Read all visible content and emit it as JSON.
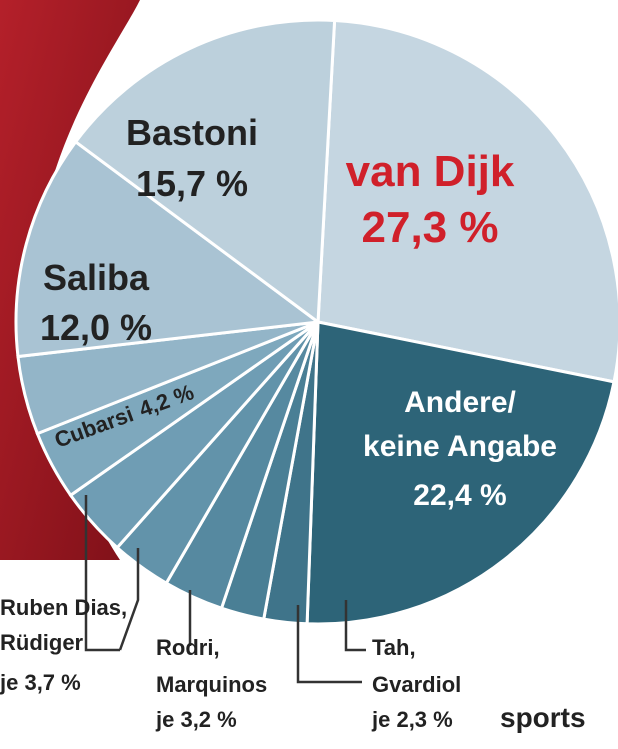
{
  "brand": "sports",
  "chart_data": {
    "type": "pie",
    "title": "",
    "unit": "%",
    "slices": [
      {
        "name": "van Dijk",
        "value": 27.3,
        "label": "27,3 %",
        "color": "#c5d6e1"
      },
      {
        "name": "Andere/ keine Angabe",
        "value": 22.4,
        "label": "22,4 %",
        "color": "#2d6478"
      },
      {
        "name": "Tah",
        "value": 2.3,
        "color": "#3f748a"
      },
      {
        "name": "Gvardiol",
        "value": 2.3,
        "color": "#4a7f95"
      },
      {
        "name": "Rodri",
        "value": 3.2,
        "color": "#5689a0"
      },
      {
        "name": "Marquinos",
        "value": 3.2,
        "color": "#6293aa"
      },
      {
        "name": "Ruben Dias",
        "value": 3.7,
        "color": "#6f9db4"
      },
      {
        "name": "Rüdiger",
        "value": 3.7,
        "color": "#7ea8bd"
      },
      {
        "name": "Cubarsi",
        "value": 4.2,
        "label": "4,2 %",
        "color": "#93b5c8"
      },
      {
        "name": "Saliba",
        "value": 12.0,
        "label": "12,0 %",
        "color": "#a9c3d3"
      },
      {
        "name": "Bastoni",
        "value": 15.7,
        "label": "15,7 %",
        "color": "#bcd0dc"
      }
    ],
    "group_labels": {
      "dias_ruediger": {
        "line1": "Ruben Dias,",
        "line2": "Rüdiger",
        "line3": "je 3,7 %"
      },
      "rodri_marquinos": {
        "line1": "Rodri,",
        "line2": "Marquinos",
        "line3": "je 3,2 %"
      },
      "tah_gvardiol": {
        "line1": "Tah,",
        "line2": "Gvardiol",
        "line3": "je 2,3 %"
      }
    }
  }
}
